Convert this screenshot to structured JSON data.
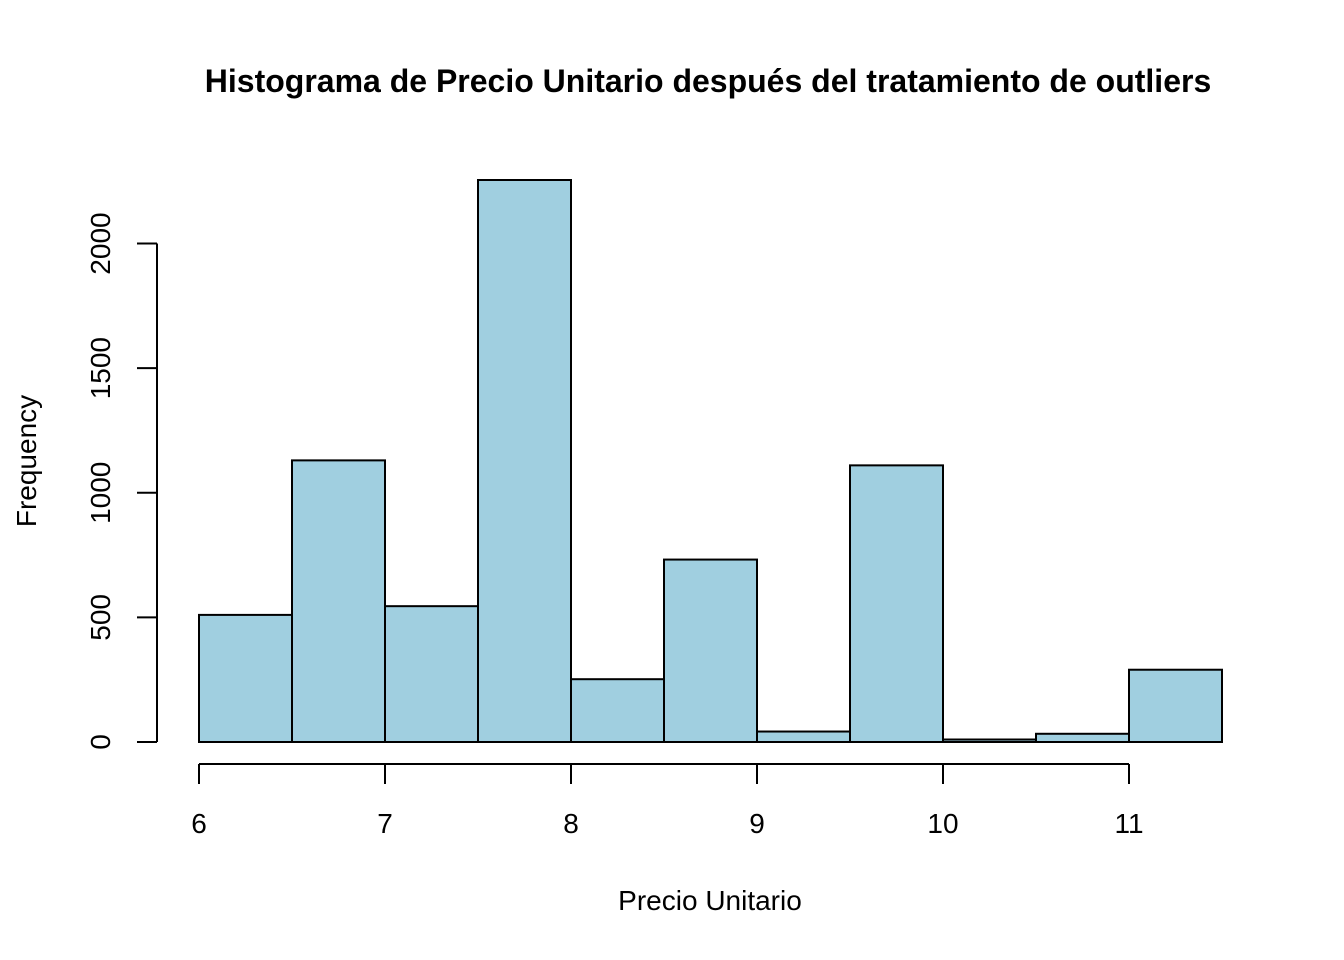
{
  "chart_data": {
    "type": "bar",
    "title": "Histograma de Precio Unitario después del tratamiento de outliers",
    "xlabel": "Precio Unitario",
    "ylabel": "Frequency",
    "bin_edges": [
      6,
      6.5,
      7,
      7.5,
      8,
      8.5,
      9,
      9.5,
      10,
      10.5,
      11,
      11.5
    ],
    "values": [
      510,
      1130,
      545,
      2255,
      252,
      732,
      42,
      1110,
      10,
      33,
      290
    ],
    "x_ticks": [
      6,
      7,
      8,
      9,
      10,
      11
    ],
    "x_tick_labels": [
      "6",
      "7",
      "8",
      "9",
      "10",
      "11"
    ],
    "y_ticks": [
      0,
      500,
      1000,
      1500,
      2000
    ],
    "y_tick_labels": [
      "0",
      "500",
      "1000",
      "1500",
      "2000"
    ],
    "xlim": [
      6,
      11.5
    ],
    "ylim": [
      0,
      2255
    ],
    "bar_color": "#A0CFE0",
    "grid": false
  }
}
